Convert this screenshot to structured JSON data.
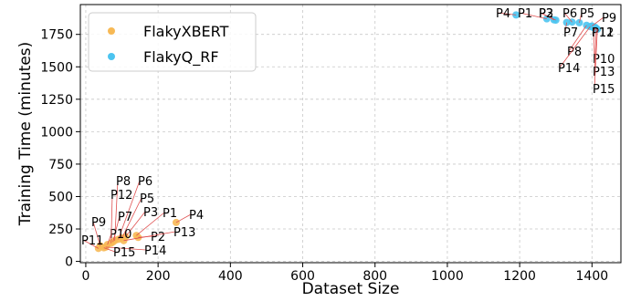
{
  "chart_data": {
    "type": "scatter",
    "xlabel": "Dataset Size",
    "ylabel": "Training Time (minutes)",
    "xlim": [
      -15,
      1480
    ],
    "ylim": [
      -10,
      1980
    ],
    "xticks": [
      0,
      200,
      400,
      600,
      800,
      1000,
      1200,
      1400
    ],
    "yticks": [
      0,
      250,
      500,
      750,
      1000,
      1250,
      1500,
      1750
    ],
    "grid": true,
    "legend_position": "top-left",
    "series": [
      {
        "name": "FlakyXBERT",
        "color": "#f7b955",
        "points": [
          {
            "label": "P1",
            "x": 140,
            "y": 200
          },
          {
            "label": "P2",
            "x": 145,
            "y": 185
          },
          {
            "label": "P3",
            "x": 110,
            "y": 190
          },
          {
            "label": "P4",
            "x": 250,
            "y": 300
          },
          {
            "label": "P5",
            "x": 100,
            "y": 180
          },
          {
            "label": "P6",
            "x": 90,
            "y": 170
          },
          {
            "label": "P7",
            "x": 75,
            "y": 150
          },
          {
            "label": "P8",
            "x": 80,
            "y": 160
          },
          {
            "label": "P9",
            "x": 40,
            "y": 120
          },
          {
            "label": "P10",
            "x": 60,
            "y": 130
          },
          {
            "label": "P11",
            "x": 35,
            "y": 100
          },
          {
            "label": "P12",
            "x": 70,
            "y": 140
          },
          {
            "label": "P13",
            "x": 105,
            "y": 160
          },
          {
            "label": "P14",
            "x": 55,
            "y": 110
          },
          {
            "label": "P15",
            "x": 50,
            "y": 105
          }
        ]
      },
      {
        "name": "FlakyQ_RF",
        "color": "#4cc4f0",
        "points": [
          {
            "label": "P1",
            "x": 1275,
            "y": 1870
          },
          {
            "label": "P2",
            "x": 1300,
            "y": 1860
          },
          {
            "label": "P3",
            "x": 1295,
            "y": 1862
          },
          {
            "label": "P4",
            "x": 1190,
            "y": 1900
          },
          {
            "label": "P5",
            "x": 1365,
            "y": 1840
          },
          {
            "label": "P6",
            "x": 1345,
            "y": 1845
          },
          {
            "label": "P7",
            "x": 1330,
            "y": 1842
          },
          {
            "label": "P8",
            "x": 1385,
            "y": 1820
          },
          {
            "label": "P9",
            "x": 1400,
            "y": 1815
          },
          {
            "label": "P10",
            "x": 1405,
            "y": 1800
          },
          {
            "label": "P11",
            "x": 1408,
            "y": 1805
          },
          {
            "label": "P12",
            "x": 1410,
            "y": 1802
          },
          {
            "label": "P13",
            "x": 1412,
            "y": 1795
          },
          {
            "label": "P14",
            "x": 1395,
            "y": 1810
          },
          {
            "label": "P15",
            "x": 1415,
            "y": 1790
          }
        ]
      }
    ]
  }
}
